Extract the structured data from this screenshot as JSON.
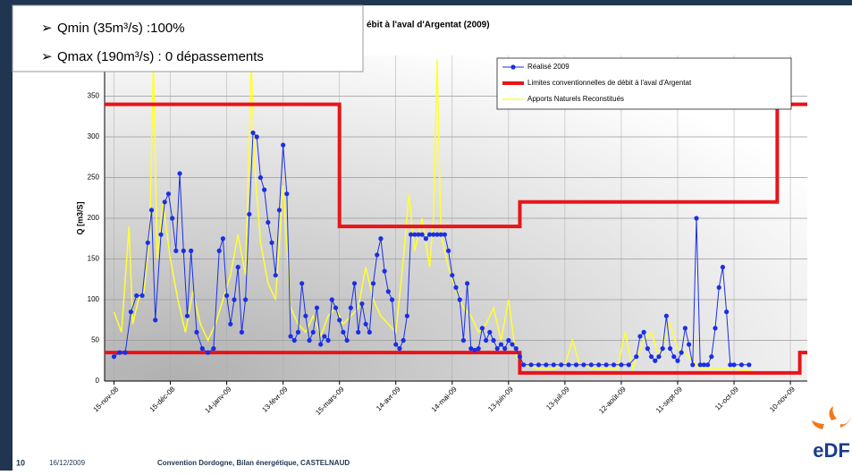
{
  "notes": [
    "Qmin (35m³/s) :100%",
    "Qmax (190m³/s) : 0 dépassements"
  ],
  "footer": {
    "page": "10",
    "date": "16/12/2009",
    "text": "Convention Dordogne, Bilan énergétique, CASTELNAUD"
  },
  "logo": "eDF",
  "chart_data": {
    "type": "line",
    "title": "ébit à l'aval d'Argentat (2009)",
    "y_label": "Q [m3/S]",
    "xlim": [
      -5,
      369
    ],
    "ylim": [
      0,
      400
    ],
    "yticks": [
      0,
      50,
      100,
      150,
      200,
      250,
      300,
      350
    ],
    "xticks": [
      {
        "value": 0,
        "label": "15-nov-08"
      },
      {
        "value": 30,
        "label": "15-déc-08"
      },
      {
        "value": 60,
        "label": "14-janv-09"
      },
      {
        "value": 90,
        "label": "13-févr-09"
      },
      {
        "value": 120,
        "label": "15-mars-09"
      },
      {
        "value": 150,
        "label": "14-avr-09"
      },
      {
        "value": 180,
        "label": "14-mai-09"
      },
      {
        "value": 210,
        "label": "13-juin-09"
      },
      {
        "value": 240,
        "label": "13-juil-09"
      },
      {
        "value": 270,
        "label": "12-août-09"
      },
      {
        "value": 300,
        "label": "11-sept-09"
      },
      {
        "value": 330,
        "label": "11-oct-09"
      },
      {
        "value": 360,
        "label": "10-nov-09"
      }
    ],
    "grid": true,
    "series": [
      {
        "name": "Réalisé 2009",
        "color": "#1a2ee6",
        "width": 1,
        "marker": true,
        "x": [
          0,
          3,
          6,
          9,
          12,
          15,
          18,
          20,
          22,
          25,
          27,
          29,
          31,
          33,
          35,
          37,
          39,
          41,
          44,
          47,
          50,
          53,
          56,
          58,
          60,
          62,
          64,
          66,
          68,
          70,
          72,
          74,
          76,
          78,
          80,
          82,
          84,
          86,
          88,
          90,
          92,
          94,
          96,
          98,
          100,
          102,
          104,
          106,
          108,
          110,
          112,
          114,
          116,
          118,
          120,
          122,
          124,
          126,
          128,
          130,
          132,
          134,
          136,
          138,
          140,
          142,
          144,
          146,
          148,
          150,
          152,
          154,
          156,
          158,
          160,
          162,
          164,
          166,
          168,
          170,
          172,
          174,
          176,
          178,
          180,
          182,
          184,
          186,
          188,
          190,
          192,
          194,
          196,
          198,
          200,
          202,
          204,
          206,
          208,
          210,
          212,
          214,
          216,
          218,
          222,
          226,
          230,
          234,
          238,
          242,
          246,
          250,
          254,
          258,
          262,
          266,
          270,
          274,
          278,
          280,
          282,
          284,
          286,
          288,
          290,
          292,
          294,
          296,
          298,
          300,
          302,
          304,
          306,
          308,
          310,
          312,
          314,
          316,
          318,
          320,
          322,
          324,
          326,
          328,
          330,
          334,
          338
        ],
        "values": [
          30,
          35,
          35,
          85,
          105,
          105,
          170,
          210,
          75,
          180,
          220,
          230,
          200,
          160,
          255,
          160,
          80,
          160,
          60,
          40,
          35,
          40,
          160,
          175,
          105,
          70,
          100,
          140,
          60,
          100,
          205,
          305,
          300,
          250,
          235,
          195,
          170,
          130,
          210,
          290,
          230,
          55,
          50,
          60,
          120,
          80,
          50,
          60,
          90,
          45,
          55,
          50,
          100,
          90,
          75,
          60,
          50,
          90,
          120,
          60,
          95,
          70,
          60,
          120,
          155,
          175,
          135,
          110,
          100,
          45,
          40,
          50,
          80,
          180,
          180,
          180,
          180,
          175,
          180,
          180,
          180,
          180,
          180,
          160,
          130,
          115,
          100,
          50,
          120,
          40,
          38,
          40,
          65,
          50,
          60,
          50,
          40,
          45,
          40,
          50,
          45,
          40,
          30,
          20,
          20,
          20,
          20,
          20,
          20,
          20,
          20,
          20,
          20,
          20,
          20,
          20,
          20,
          20,
          30,
          55,
          60,
          40,
          30,
          25,
          30,
          40,
          80,
          40,
          30,
          25,
          35,
          65,
          45,
          20,
          200,
          20,
          20,
          20,
          30,
          65,
          115,
          140,
          85,
          20,
          20,
          20,
          20
        ]
      },
      {
        "name": "Limites conventionnelles de débit à l'aval d'Argentat",
        "color": "#e8141a",
        "width": 4,
        "marker": false,
        "x": [
          -5,
          120,
          120,
          216,
          216,
          353,
          353,
          369,
          null,
          -5,
          216,
          216,
          365,
          365,
          369
        ],
        "values": [
          340,
          340,
          190,
          190,
          220,
          220,
          340,
          340,
          null,
          35,
          35,
          10,
          10,
          35,
          35
        ]
      },
      {
        "name": "Apports Naturels Reconstitués",
        "color": "#ffff33",
        "width": 1.5,
        "marker": false,
        "x": [
          0,
          4,
          8,
          10,
          13,
          16,
          19,
          21,
          23,
          26,
          30,
          34,
          38,
          42,
          46,
          50,
          54,
          58,
          62,
          66,
          70,
          72,
          73,
          75,
          78,
          82,
          86,
          90,
          94,
          98,
          102,
          106,
          110,
          114,
          118,
          122,
          126,
          130,
          134,
          138,
          142,
          146,
          150,
          154,
          157,
          160,
          164,
          168,
          170,
          172,
          174,
          178,
          182,
          186,
          190,
          194,
          198,
          202,
          206,
          210,
          214,
          218,
          226,
          234,
          240,
          244,
          248,
          256,
          262,
          268,
          272,
          276,
          282,
          286,
          290,
          296,
          300,
          306,
          312,
          320,
          330,
          340
        ],
        "values": [
          85,
          60,
          190,
          70,
          100,
          110,
          180,
          395,
          150,
          220,
          150,
          100,
          60,
          110,
          70,
          50,
          70,
          100,
          130,
          180,
          130,
          300,
          395,
          260,
          170,
          120,
          100,
          240,
          90,
          70,
          60,
          80,
          55,
          80,
          90,
          70,
          80,
          90,
          140,
          100,
          80,
          70,
          60,
          150,
          230,
          160,
          200,
          140,
          200,
          395,
          180,
          140,
          110,
          90,
          80,
          60,
          70,
          90,
          50,
          100,
          30,
          20,
          15,
          15,
          20,
          50,
          20,
          15,
          15,
          15,
          60,
          15,
          50,
          60,
          30,
          70,
          40,
          30,
          15,
          15,
          15,
          12
        ]
      }
    ]
  }
}
